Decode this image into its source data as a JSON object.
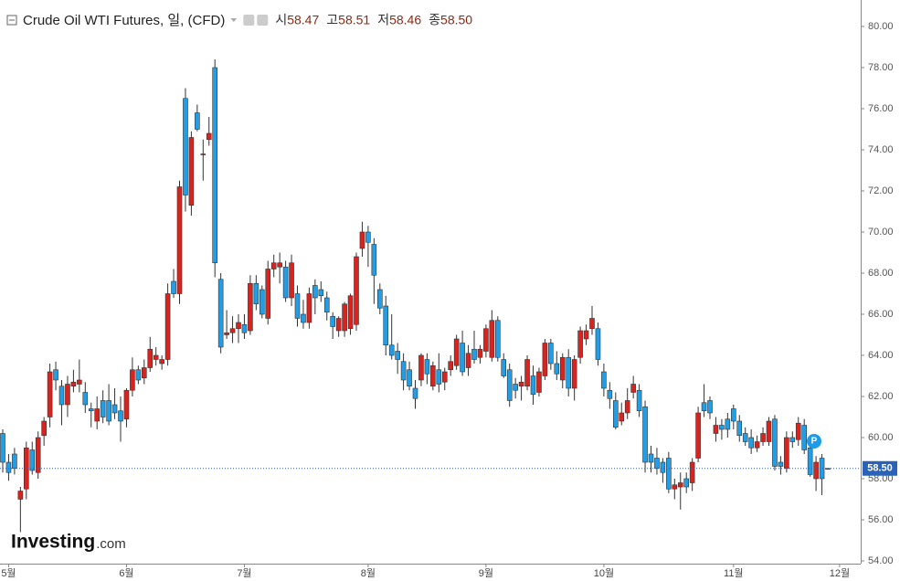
{
  "chart_data": {
    "type": "candlestick",
    "title": "Crude Oil WTI Futures, 일, (CFD)",
    "ohlc_header": {
      "open_label": "시",
      "open": 58.47,
      "high_label": "고",
      "high": 58.51,
      "low_label": "저",
      "low": 58.46,
      "close_label": "종",
      "close": {
        "value": 58.5,
        "label": "58.50"
      }
    },
    "up_color": "#d9231f",
    "down_color": "#229ee6",
    "ylim": [
      54,
      80
    ],
    "yticks": [
      {
        "value": 54,
        "label": "54.00"
      },
      {
        "value": 56,
        "label": "56.00"
      },
      {
        "value": 58,
        "label": "58.00"
      },
      {
        "value": 60,
        "label": "60.00"
      },
      {
        "value": 62,
        "label": "62.00"
      },
      {
        "value": 64,
        "label": "64.00"
      },
      {
        "value": 66,
        "label": "66.00"
      },
      {
        "value": 68,
        "label": "68.00"
      },
      {
        "value": 70,
        "label": "70.00"
      },
      {
        "value": 72,
        "label": "72.00"
      },
      {
        "value": 74,
        "label": "74.00"
      },
      {
        "value": 76,
        "label": "76.00"
      },
      {
        "value": 78,
        "label": "78.00"
      },
      {
        "value": 80,
        "label": "80.00"
      }
    ],
    "last_price": {
      "value": 58.5,
      "label": "58.50"
    },
    "marker": "P",
    "logo": {
      "brand": "Investing",
      "suffix": ".com"
    },
    "categories": [
      null,
      "5월",
      null,
      null,
      null,
      null,
      null,
      null,
      null,
      null,
      null,
      null,
      null,
      null,
      null,
      null,
      null,
      null,
      null,
      null,
      null,
      "6월",
      null,
      null,
      null,
      null,
      null,
      null,
      null,
      null,
      null,
      null,
      null,
      null,
      null,
      null,
      null,
      null,
      null,
      null,
      null,
      "7월",
      null,
      null,
      null,
      null,
      null,
      null,
      null,
      null,
      null,
      null,
      null,
      null,
      null,
      null,
      null,
      null,
      null,
      null,
      null,
      null,
      "8월",
      null,
      null,
      null,
      null,
      null,
      null,
      null,
      null,
      null,
      null,
      null,
      null,
      null,
      null,
      null,
      null,
      null,
      null,
      null,
      "9월",
      null,
      null,
      null,
      null,
      null,
      null,
      null,
      null,
      null,
      null,
      null,
      null,
      null,
      null,
      null,
      null,
      null,
      null,
      null,
      "10월",
      null,
      null,
      null,
      null,
      null,
      null,
      null,
      null,
      null,
      null,
      null,
      null,
      null,
      null,
      null,
      null,
      null,
      null,
      null,
      null,
      null,
      "11월",
      null,
      null,
      null,
      null,
      null,
      null,
      null,
      null,
      null,
      null,
      null,
      null,
      null,
      null,
      null,
      null,
      null,
      "12월"
    ],
    "ohlc": [
      [
        60.2,
        60.4,
        58.3,
        58.8
      ],
      [
        58.8,
        59.2,
        57.9,
        58.3
      ],
      [
        59.2,
        59.5,
        58.2,
        58.5
      ],
      [
        57.0,
        57.6,
        55.4,
        57.4
      ],
      [
        57.5,
        59.8,
        57.0,
        59.5
      ],
      [
        59.4,
        59.8,
        58.2,
        58.4
      ],
      [
        58.3,
        60.3,
        58.0,
        60.0
      ],
      [
        60.1,
        61.0,
        59.6,
        60.8
      ],
      [
        61.0,
        63.6,
        60.5,
        63.2
      ],
      [
        63.3,
        63.7,
        62.3,
        62.8
      ],
      [
        62.5,
        62.8,
        60.6,
        61.6
      ],
      [
        61.6,
        63.0,
        61.0,
        62.6
      ],
      [
        62.5,
        63.3,
        62.2,
        62.7
      ],
      [
        62.6,
        63.8,
        62.2,
        62.8
      ],
      [
        62.2,
        62.7,
        61.2,
        61.6
      ],
      [
        61.4,
        61.7,
        60.5,
        61.3
      ],
      [
        60.8,
        62.0,
        60.4,
        61.4
      ],
      [
        61.8,
        62.3,
        60.7,
        61.0
      ],
      [
        61.8,
        62.6,
        60.6,
        60.8
      ],
      [
        61.6,
        62.4,
        60.9,
        61.2
      ],
      [
        61.3,
        62.0,
        59.8,
        60.8
      ],
      [
        60.9,
        62.4,
        60.5,
        62.3
      ],
      [
        62.3,
        63.9,
        62.0,
        63.3
      ],
      [
        63.3,
        63.5,
        62.6,
        62.8
      ],
      [
        62.9,
        63.8,
        62.6,
        63.4
      ],
      [
        63.4,
        64.9,
        63.2,
        64.3
      ],
      [
        63.8,
        64.4,
        63.5,
        64.0
      ],
      [
        63.6,
        64.0,
        63.3,
        63.8
      ],
      [
        63.8,
        67.5,
        63.5,
        67.0
      ],
      [
        67.6,
        68.2,
        66.8,
        67.0
      ],
      [
        67.0,
        72.5,
        66.5,
        72.2
      ],
      [
        76.5,
        77.0,
        71.0,
        71.8
      ],
      [
        71.3,
        74.9,
        70.8,
        74.6
      ],
      [
        75.8,
        76.2,
        74.9,
        75.0
      ],
      [
        73.8,
        74.5,
        72.5,
        73.8
      ],
      [
        74.5,
        75.6,
        74.2,
        74.8
      ],
      [
        78.0,
        78.4,
        67.8,
        68.5
      ],
      [
        67.7,
        68.0,
        64.1,
        64.4
      ],
      [
        65.0,
        66.2,
        64.8,
        65.1
      ],
      [
        65.1,
        65.9,
        64.6,
        65.3
      ],
      [
        65.3,
        66.0,
        64.6,
        65.6
      ],
      [
        65.5,
        66.0,
        64.8,
        65.1
      ],
      [
        65.2,
        67.9,
        65.0,
        67.5
      ],
      [
        67.5,
        67.9,
        66.2,
        66.5
      ],
      [
        67.2,
        67.4,
        65.8,
        66.0
      ],
      [
        65.8,
        68.6,
        65.5,
        68.2
      ],
      [
        68.2,
        68.9,
        67.8,
        68.5
      ],
      [
        68.3,
        69.0,
        67.5,
        68.5
      ],
      [
        68.3,
        68.6,
        66.6,
        66.8
      ],
      [
        66.8,
        68.9,
        66.4,
        68.5
      ],
      [
        67.0,
        67.4,
        65.4,
        65.8
      ],
      [
        66.0,
        66.7,
        65.3,
        65.6
      ],
      [
        65.6,
        67.3,
        65.3,
        67.0
      ],
      [
        67.4,
        67.7,
        66.0,
        66.8
      ],
      [
        67.2,
        67.6,
        66.6,
        66.9
      ],
      [
        66.8,
        67.1,
        65.7,
        66.1
      ],
      [
        65.9,
        66.1,
        64.8,
        65.4
      ],
      [
        65.2,
        65.9,
        64.9,
        65.8
      ],
      [
        65.2,
        66.6,
        64.9,
        66.5
      ],
      [
        65.3,
        67.0,
        65.0,
        66.9
      ],
      [
        65.5,
        69.0,
        65.2,
        68.8
      ],
      [
        69.2,
        70.5,
        68.8,
        70.0
      ],
      [
        70.0,
        70.3,
        68.3,
        69.5
      ],
      [
        69.4,
        69.7,
        66.5,
        67.9
      ],
      [
        67.2,
        67.5,
        66.0,
        66.3
      ],
      [
        66.4,
        66.9,
        64.0,
        64.5
      ],
      [
        64.5,
        66.0,
        63.8,
        64.0
      ],
      [
        64.2,
        64.6,
        63.1,
        63.8
      ],
      [
        63.7,
        64.1,
        62.3,
        62.8
      ],
      [
        63.3,
        63.7,
        62.3,
        62.5
      ],
      [
        62.4,
        62.8,
        61.4,
        61.9
      ],
      [
        62.8,
        64.1,
        62.5,
        64.0
      ],
      [
        63.8,
        64.1,
        62.6,
        63.1
      ],
      [
        62.5,
        63.7,
        62.3,
        63.5
      ],
      [
        63.3,
        64.1,
        62.2,
        62.6
      ],
      [
        62.7,
        63.4,
        62.3,
        63.2
      ],
      [
        63.3,
        64.0,
        63.0,
        63.7
      ],
      [
        63.5,
        65.0,
        63.3,
        64.8
      ],
      [
        64.6,
        65.2,
        63.0,
        63.2
      ],
      [
        63.4,
        64.5,
        63.0,
        64.1
      ],
      [
        64.3,
        65.2,
        63.6,
        63.8
      ],
      [
        63.9,
        64.5,
        63.6,
        64.3
      ],
      [
        64.2,
        65.5,
        63.9,
        65.3
      ],
      [
        63.9,
        66.2,
        63.7,
        65.7
      ],
      [
        65.7,
        65.9,
        63.7,
        63.9
      ],
      [
        63.8,
        64.1,
        62.9,
        63.0
      ],
      [
        63.3,
        63.6,
        61.5,
        61.8
      ],
      [
        62.6,
        62.9,
        61.9,
        62.3
      ],
      [
        62.5,
        63.0,
        61.8,
        62.7
      ],
      [
        62.5,
        64.0,
        62.3,
        63.8
      ],
      [
        63.0,
        63.5,
        61.6,
        62.1
      ],
      [
        62.2,
        63.4,
        62.0,
        63.2
      ],
      [
        63.0,
        64.8,
        62.8,
        64.6
      ],
      [
        64.6,
        64.8,
        63.3,
        63.6
      ],
      [
        63.6,
        64.2,
        62.8,
        63.1
      ],
      [
        62.8,
        64.1,
        62.4,
        63.9
      ],
      [
        63.9,
        64.3,
        62.0,
        62.4
      ],
      [
        62.4,
        64.0,
        61.8,
        63.8
      ],
      [
        63.9,
        65.4,
        63.6,
        65.2
      ],
      [
        64.8,
        65.5,
        64.5,
        65.2
      ],
      [
        65.3,
        66.4,
        65.0,
        65.8
      ],
      [
        65.3,
        65.6,
        63.5,
        63.8
      ],
      [
        63.2,
        63.6,
        62.0,
        62.4
      ],
      [
        62.3,
        62.7,
        61.4,
        61.9
      ],
      [
        61.8,
        62.2,
        60.4,
        60.5
      ],
      [
        60.8,
        61.7,
        60.6,
        61.2
      ],
      [
        61.2,
        62.4,
        60.9,
        61.8
      ],
      [
        62.2,
        63.0,
        61.9,
        62.6
      ],
      [
        62.3,
        62.6,
        61.0,
        61.3
      ],
      [
        61.5,
        61.8,
        58.3,
        58.8
      ],
      [
        59.2,
        59.6,
        58.3,
        58.8
      ],
      [
        59.0,
        59.5,
        58.2,
        58.5
      ],
      [
        58.8,
        59.0,
        57.8,
        58.3
      ],
      [
        59.0,
        59.3,
        57.3,
        57.5
      ],
      [
        57.5,
        58.0,
        57.0,
        57.7
      ],
      [
        57.6,
        58.3,
        56.5,
        57.8
      ],
      [
        58.0,
        58.3,
        57.3,
        57.6
      ],
      [
        57.8,
        59.0,
        57.4,
        58.8
      ],
      [
        59.0,
        61.5,
        58.8,
        61.2
      ],
      [
        61.7,
        62.6,
        61.0,
        61.3
      ],
      [
        61.8,
        62.0,
        60.9,
        61.2
      ],
      [
        60.2,
        61.0,
        59.8,
        60.6
      ],
      [
        60.6,
        60.9,
        59.9,
        60.4
      ],
      [
        60.9,
        61.2,
        60.0,
        60.4
      ],
      [
        61.4,
        61.6,
        60.4,
        60.8
      ],
      [
        60.8,
        61.1,
        59.8,
        60.1
      ],
      [
        60.2,
        60.5,
        59.6,
        59.8
      ],
      [
        60.0,
        60.4,
        59.2,
        59.5
      ],
      [
        59.5,
        60.1,
        59.3,
        59.8
      ],
      [
        59.8,
        60.5,
        59.6,
        60.2
      ],
      [
        59.8,
        61.0,
        59.6,
        60.8
      ],
      [
        60.9,
        61.1,
        58.4,
        58.6
      ],
      [
        58.8,
        59.1,
        58.2,
        58.6
      ],
      [
        58.5,
        60.3,
        58.3,
        60.0
      ],
      [
        60.0,
        60.3,
        59.5,
        59.8
      ],
      [
        59.9,
        61.0,
        59.6,
        60.7
      ],
      [
        60.6,
        60.9,
        59.2,
        59.4
      ],
      [
        59.5,
        59.8,
        58.1,
        58.2
      ],
      [
        58.0,
        59.1,
        57.4,
        58.8
      ],
      [
        59.0,
        59.2,
        57.2,
        58.0
      ],
      [
        58.47,
        58.51,
        58.46,
        58.5
      ],
      null,
      null
    ]
  }
}
